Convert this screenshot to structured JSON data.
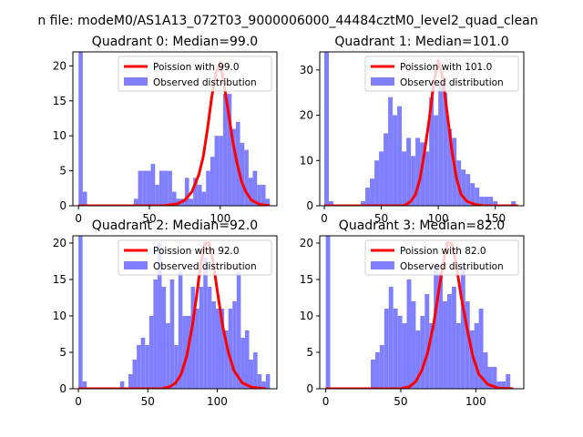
{
  "figure": {
    "suptitle": "n file: modeM0/AS1A13_072T03_9000006000_44484cztM0_level2_quad_clean"
  },
  "chart_data": [
    {
      "type": "bar",
      "title": "Quadrant 0: Median=99.0",
      "xlim": [
        -4,
        140
      ],
      "ylim": [
        0,
        22
      ],
      "xticks": [
        0,
        50,
        100
      ],
      "yticks": [
        0,
        5,
        10,
        15,
        20
      ],
      "legend_position": "top-right",
      "series": [
        {
          "name": "Poission with 99.0",
          "kind": "line",
          "color": "#ff0000",
          "x": [
            0,
            60,
            70,
            75,
            80,
            85,
            88,
            91,
            94,
            97,
            100,
            103,
            106,
            109,
            112,
            115,
            118,
            122,
            128,
            135
          ],
          "y": [
            0,
            0,
            0.3,
            0.8,
            2,
            4.5,
            7,
            11,
            15.5,
            19,
            20.5,
            17,
            13,
            9,
            6,
            3.5,
            2,
            0.8,
            0.2,
            0
          ]
        },
        {
          "name": "Observed distribution",
          "kind": "hist",
          "color": "#8080ff",
          "bin_width": 3.0,
          "bins": [
            {
              "x": 0,
              "y": 22
            },
            {
              "x": 3,
              "y": 2
            },
            {
              "x": 39,
              "y": 1
            },
            {
              "x": 42,
              "y": 5
            },
            {
              "x": 45,
              "y": 5
            },
            {
              "x": 48,
              "y": 5
            },
            {
              "x": 51,
              "y": 6
            },
            {
              "x": 54,
              "y": 3
            },
            {
              "x": 57,
              "y": 5
            },
            {
              "x": 60,
              "y": 5
            },
            {
              "x": 63,
              "y": 5
            },
            {
              "x": 66,
              "y": 2
            },
            {
              "x": 69,
              "y": 1
            },
            {
              "x": 72,
              "y": 1
            },
            {
              "x": 75,
              "y": 4
            },
            {
              "x": 78,
              "y": 1
            },
            {
              "x": 81,
              "y": 4
            },
            {
              "x": 84,
              "y": 3
            },
            {
              "x": 87,
              "y": 2
            },
            {
              "x": 90,
              "y": 5
            },
            {
              "x": 93,
              "y": 7
            },
            {
              "x": 96,
              "y": 10
            },
            {
              "x": 99,
              "y": 10
            },
            {
              "x": 102,
              "y": 16
            },
            {
              "x": 105,
              "y": 16
            },
            {
              "x": 108,
              "y": 11
            },
            {
              "x": 111,
              "y": 12
            },
            {
              "x": 114,
              "y": 9
            },
            {
              "x": 117,
              "y": 8
            },
            {
              "x": 120,
              "y": 4
            },
            {
              "x": 123,
              "y": 5
            },
            {
              "x": 126,
              "y": 3
            },
            {
              "x": 129,
              "y": 3
            },
            {
              "x": 132,
              "y": 1
            }
          ]
        }
      ]
    },
    {
      "type": "bar",
      "title": "Quadrant 1: Median=101.0",
      "xlim": [
        -4,
        175
      ],
      "ylim": [
        0,
        34
      ],
      "xticks": [
        0,
        50,
        100,
        150
      ],
      "yticks": [
        0,
        10,
        20,
        30
      ],
      "legend_position": "top-right",
      "series": [
        {
          "name": "Poission with 101.0",
          "kind": "line",
          "color": "#ff0000",
          "x": [
            0,
            70,
            76,
            80,
            84,
            88,
            92,
            96,
            100,
            104,
            108,
            112,
            116,
            120,
            125,
            132,
            140,
            170
          ],
          "y": [
            0,
            0,
            1,
            2.5,
            6,
            12,
            19,
            27,
            32,
            28,
            20,
            12,
            6,
            2.5,
            1,
            0.3,
            0,
            0
          ]
        },
        {
          "name": "Observed distribution",
          "kind": "hist",
          "color": "#8080ff",
          "bin_width": 4.0,
          "bins": [
            {
              "x": 0,
              "y": 34
            },
            {
              "x": 4,
              "y": 1
            },
            {
              "x": 32,
              "y": 1
            },
            {
              "x": 36,
              "y": 4
            },
            {
              "x": 40,
              "y": 6
            },
            {
              "x": 44,
              "y": 10
            },
            {
              "x": 48,
              "y": 12
            },
            {
              "x": 52,
              "y": 16
            },
            {
              "x": 56,
              "y": 24
            },
            {
              "x": 60,
              "y": 20
            },
            {
              "x": 64,
              "y": 22
            },
            {
              "x": 68,
              "y": 12
            },
            {
              "x": 72,
              "y": 15
            },
            {
              "x": 76,
              "y": 11
            },
            {
              "x": 80,
              "y": 15
            },
            {
              "x": 84,
              "y": 14
            },
            {
              "x": 88,
              "y": 12
            },
            {
              "x": 92,
              "y": 24
            },
            {
              "x": 96,
              "y": 20
            },
            {
              "x": 100,
              "y": 27
            },
            {
              "x": 104,
              "y": 25
            },
            {
              "x": 108,
              "y": 17
            },
            {
              "x": 112,
              "y": 15
            },
            {
              "x": 116,
              "y": 10
            },
            {
              "x": 120,
              "y": 8
            },
            {
              "x": 124,
              "y": 7
            },
            {
              "x": 128,
              "y": 5
            },
            {
              "x": 132,
              "y": 4
            },
            {
              "x": 136,
              "y": 2
            },
            {
              "x": 140,
              "y": 2
            },
            {
              "x": 144,
              "y": 2
            },
            {
              "x": 148,
              "y": 1
            },
            {
              "x": 164,
              "y": 1
            }
          ]
        }
      ]
    },
    {
      "type": "bar",
      "title": "Quadrant 2: Median=92.0",
      "xlim": [
        -4,
        143
      ],
      "ylim": [
        0,
        21
      ],
      "xticks": [
        0,
        50,
        100
      ],
      "yticks": [
        0,
        5,
        10,
        15,
        20
      ],
      "legend_position": "top-right",
      "series": [
        {
          "name": "Poission with 92.0",
          "kind": "line",
          "color": "#ff0000",
          "x": [
            0,
            60,
            66,
            70,
            74,
            78,
            82,
            85,
            88,
            91,
            94,
            97,
            100,
            104,
            108,
            112,
            118,
            125,
            135
          ],
          "y": [
            0,
            0,
            0.3,
            0.8,
            2,
            4.5,
            8.5,
            12.5,
            17,
            20,
            20,
            17.5,
            13.5,
            8.5,
            5,
            2.5,
            0.8,
            0.2,
            0
          ]
        },
        {
          "name": "Observed distribution",
          "kind": "hist",
          "color": "#8080ff",
          "bin_width": 3.0,
          "bins": [
            {
              "x": 0,
              "y": 21
            },
            {
              "x": 3,
              "y": 1
            },
            {
              "x": 30,
              "y": 1
            },
            {
              "x": 36,
              "y": 2
            },
            {
              "x": 39,
              "y": 4
            },
            {
              "x": 42,
              "y": 6
            },
            {
              "x": 45,
              "y": 7
            },
            {
              "x": 48,
              "y": 6
            },
            {
              "x": 51,
              "y": 10
            },
            {
              "x": 54,
              "y": 15
            },
            {
              "x": 57,
              "y": 20
            },
            {
              "x": 60,
              "y": 14
            },
            {
              "x": 63,
              "y": 9
            },
            {
              "x": 66,
              "y": 15
            },
            {
              "x": 69,
              "y": 6
            },
            {
              "x": 72,
              "y": 16
            },
            {
              "x": 75,
              "y": 10
            },
            {
              "x": 78,
              "y": 10
            },
            {
              "x": 81,
              "y": 14
            },
            {
              "x": 84,
              "y": 11
            },
            {
              "x": 87,
              "y": 14
            },
            {
              "x": 90,
              "y": 18
            },
            {
              "x": 93,
              "y": 14
            },
            {
              "x": 96,
              "y": 12
            },
            {
              "x": 99,
              "y": 11
            },
            {
              "x": 102,
              "y": 11
            },
            {
              "x": 105,
              "y": 8
            },
            {
              "x": 108,
              "y": 11
            },
            {
              "x": 111,
              "y": 12
            },
            {
              "x": 114,
              "y": 16
            },
            {
              "x": 117,
              "y": 7
            },
            {
              "x": 120,
              "y": 8
            },
            {
              "x": 123,
              "y": 4
            },
            {
              "x": 126,
              "y": 5
            },
            {
              "x": 129,
              "y": 2
            },
            {
              "x": 132,
              "y": 1
            },
            {
              "x": 135,
              "y": 2
            }
          ]
        }
      ]
    },
    {
      "type": "bar",
      "title": "Quadrant 3: Median=82.0",
      "xlim": [
        -4,
        132
      ],
      "ylim": [
        0,
        21
      ],
      "xticks": [
        0,
        50,
        100
      ],
      "yticks": [
        0,
        5,
        10,
        15,
        20
      ],
      "legend_position": "top-right",
      "series": [
        {
          "name": "Poission with 82.0",
          "kind": "line",
          "color": "#ff0000",
          "x": [
            0,
            50,
            56,
            60,
            64,
            68,
            72,
            75,
            78,
            81,
            84,
            87,
            90,
            94,
            98,
            102,
            108,
            115,
            125
          ],
          "y": [
            0,
            0,
            0.3,
            1,
            2.5,
            5,
            9,
            13,
            17,
            20,
            20,
            17,
            13,
            8.5,
            4.5,
            2,
            0.6,
            0.1,
            0
          ]
        },
        {
          "name": "Observed distribution",
          "kind": "hist",
          "color": "#8080ff",
          "bin_width": 3.0,
          "bins": [
            {
              "x": 0,
              "y": 21
            },
            {
              "x": 30,
              "y": 4
            },
            {
              "x": 33,
              "y": 5
            },
            {
              "x": 36,
              "y": 6
            },
            {
              "x": 39,
              "y": 11
            },
            {
              "x": 42,
              "y": 14
            },
            {
              "x": 45,
              "y": 11
            },
            {
              "x": 48,
              "y": 10
            },
            {
              "x": 51,
              "y": 9
            },
            {
              "x": 54,
              "y": 15
            },
            {
              "x": 57,
              "y": 12
            },
            {
              "x": 60,
              "y": 8
            },
            {
              "x": 63,
              "y": 10
            },
            {
              "x": 66,
              "y": 13
            },
            {
              "x": 69,
              "y": 9
            },
            {
              "x": 72,
              "y": 17
            },
            {
              "x": 75,
              "y": 16
            },
            {
              "x": 78,
              "y": 12
            },
            {
              "x": 81,
              "y": 13
            },
            {
              "x": 84,
              "y": 14
            },
            {
              "x": 87,
              "y": 9
            },
            {
              "x": 90,
              "y": 17
            },
            {
              "x": 93,
              "y": 12
            },
            {
              "x": 96,
              "y": 8
            },
            {
              "x": 99,
              "y": 9
            },
            {
              "x": 102,
              "y": 11
            },
            {
              "x": 105,
              "y": 5
            },
            {
              "x": 108,
              "y": 3
            },
            {
              "x": 111,
              "y": 3
            },
            {
              "x": 114,
              "y": 1
            },
            {
              "x": 117,
              "y": 1
            },
            {
              "x": 120,
              "y": 2
            }
          ]
        }
      ]
    }
  ]
}
